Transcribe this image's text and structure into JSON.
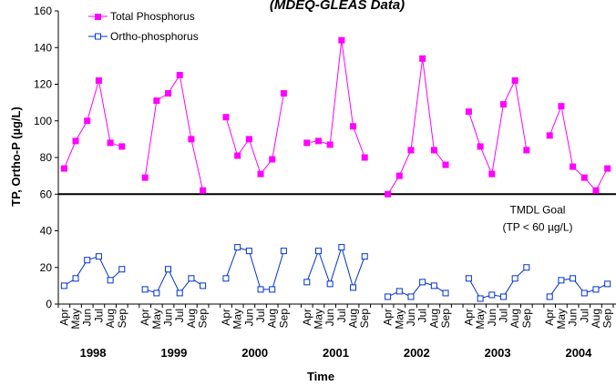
{
  "chart_data": {
    "type": "line",
    "title": "(MDEQ-GLEAS Data)",
    "xlabel": "Time",
    "ylabel": "TP, Ortho-P (µg/L)",
    "ylim": [
      0,
      160
    ],
    "y_ticks": [
      "0",
      "20",
      "40",
      "60",
      "80",
      "100",
      "120",
      "140",
      "160"
    ],
    "months": [
      "Apr",
      "May",
      "Jun",
      "Jul",
      "Aug",
      "Sep"
    ],
    "years": [
      "1998",
      "1999",
      "2000",
      "2001",
      "2002",
      "2003",
      "2004"
    ],
    "legend_position": "top-left",
    "grid": false,
    "series": [
      {
        "name": "Total Phosphorus",
        "color": "#ff00ff",
        "marker": "filled-square",
        "values": [
          [
            74,
            89,
            100,
            122,
            88,
            86
          ],
          [
            69,
            111,
            115,
            125,
            90,
            62
          ],
          [
            102,
            81,
            90,
            71,
            79,
            115
          ],
          [
            88,
            89,
            87,
            144,
            97,
            80
          ],
          [
            60,
            70,
            84,
            134,
            84,
            76
          ],
          [
            105,
            86,
            71,
            109,
            122,
            84
          ],
          [
            92,
            108,
            75,
            69,
            62,
            74
          ]
        ]
      },
      {
        "name": "Ortho-phosphorus",
        "color": "#0033cc",
        "marker": "open-square",
        "values": [
          [
            10,
            14,
            24,
            26,
            13,
            19
          ],
          [
            8,
            6,
            19,
            6,
            14,
            10
          ],
          [
            14,
            31,
            29,
            8,
            8,
            29
          ],
          [
            12,
            29,
            11,
            31,
            9,
            26
          ],
          [
            4,
            7,
            4,
            12,
            10,
            6
          ],
          [
            14,
            3,
            5,
            4,
            14,
            20
          ],
          [
            4,
            13,
            14,
            6,
            8,
            11
          ]
        ]
      }
    ],
    "reference_line": {
      "value": 60,
      "label_line1": "TMDL Goal",
      "label_line2": "(TP < 60 µg/L)",
      "color": "#000000"
    }
  }
}
